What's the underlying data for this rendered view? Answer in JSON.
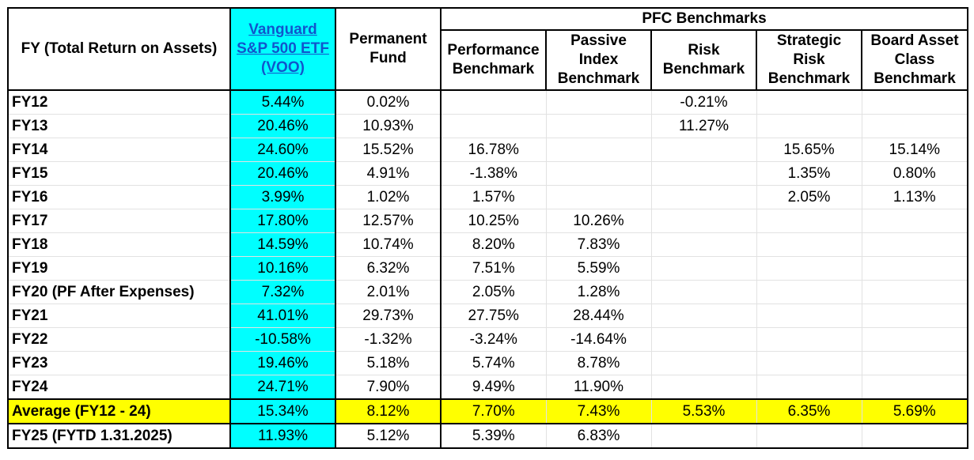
{
  "headers": {
    "fy": "FY (Total Return on Assets)",
    "voo_line1": "Vanguard",
    "voo_line2": "S&P 500 ETF",
    "voo_line3": "(VOO)",
    "pf_line1": "Permanent",
    "pf_line2": "Fund",
    "pfc": "PFC Benchmarks",
    "perf_line1": "Performance",
    "perf_line2": "Benchmark",
    "passive_line1": "Passive",
    "passive_line2": "Index",
    "passive_line3": "Benchmark",
    "risk_line1": "Risk",
    "risk_line2": "Benchmark",
    "strat_line1": "Strategic",
    "strat_line2": "Risk",
    "strat_line3": "Benchmark",
    "board_line1": "Board Asset",
    "board_line2": "Class",
    "board_line3": "Benchmark"
  },
  "rows": [
    {
      "fy": "FY12",
      "voo": "5.44%",
      "pf": "0.02%",
      "perf": "",
      "passive": "",
      "risk": "-0.21%",
      "strat": "",
      "board": ""
    },
    {
      "fy": "FY13",
      "voo": "20.46%",
      "pf": "10.93%",
      "perf": "",
      "passive": "",
      "risk": "11.27%",
      "strat": "",
      "board": ""
    },
    {
      "fy": "FY14",
      "voo": "24.60%",
      "pf": "15.52%",
      "perf": "16.78%",
      "passive": "",
      "risk": "",
      "strat": "15.65%",
      "board": "15.14%"
    },
    {
      "fy": "FY15",
      "voo": "20.46%",
      "pf": "4.91%",
      "perf": "-1.38%",
      "passive": "",
      "risk": "",
      "strat": "1.35%",
      "board": "0.80%"
    },
    {
      "fy": "FY16",
      "voo": "3.99%",
      "pf": "1.02%",
      "perf": "1.57%",
      "passive": "",
      "risk": "",
      "strat": "2.05%",
      "board": "1.13%"
    },
    {
      "fy": "FY17",
      "voo": "17.80%",
      "pf": "12.57%",
      "perf": "10.25%",
      "passive": "10.26%",
      "risk": "",
      "strat": "",
      "board": ""
    },
    {
      "fy": "FY18",
      "voo": "14.59%",
      "pf": "10.74%",
      "perf": "8.20%",
      "passive": "7.83%",
      "risk": "",
      "strat": "",
      "board": ""
    },
    {
      "fy": "FY19",
      "voo": "10.16%",
      "pf": "6.32%",
      "perf": "7.51%",
      "passive": "5.59%",
      "risk": "",
      "strat": "",
      "board": ""
    },
    {
      "fy": "FY20 (PF After Expenses)",
      "voo": "7.32%",
      "pf": "2.01%",
      "perf": "2.05%",
      "passive": "1.28%",
      "risk": "",
      "strat": "",
      "board": ""
    },
    {
      "fy": "FY21",
      "voo": "41.01%",
      "pf": "29.73%",
      "perf": "27.75%",
      "passive": "28.44%",
      "risk": "",
      "strat": "",
      "board": ""
    },
    {
      "fy": "FY22",
      "voo": "-10.58%",
      "pf": "-1.32%",
      "perf": "-3.24%",
      "passive": "-14.64%",
      "risk": "",
      "strat": "",
      "board": ""
    },
    {
      "fy": "FY23",
      "voo": "19.46%",
      "pf": "5.18%",
      "perf": "5.74%",
      "passive": "8.78%",
      "risk": "",
      "strat": "",
      "board": ""
    },
    {
      "fy": "FY24",
      "voo": "24.71%",
      "pf": "7.90%",
      "perf": "9.49%",
      "passive": "11.90%",
      "risk": "",
      "strat": "",
      "board": ""
    }
  ],
  "average": {
    "fy": "Average (FY12 - 24)",
    "voo": "15.34%",
    "pf": "8.12%",
    "perf": "7.70%",
    "passive": "7.43%",
    "risk": "5.53%",
    "strat": "6.35%",
    "board": "5.69%"
  },
  "ytd": {
    "fy": "FY25 (FYTD 1.31.2025)",
    "voo": "11.93%",
    "pf": "5.12%",
    "perf": "5.39%",
    "passive": "6.83%",
    "risk": "",
    "strat": "",
    "board": ""
  },
  "colors": {
    "voo_highlight": "#00ffff",
    "average_highlight": "#ffff00",
    "link": "#1155cc"
  }
}
